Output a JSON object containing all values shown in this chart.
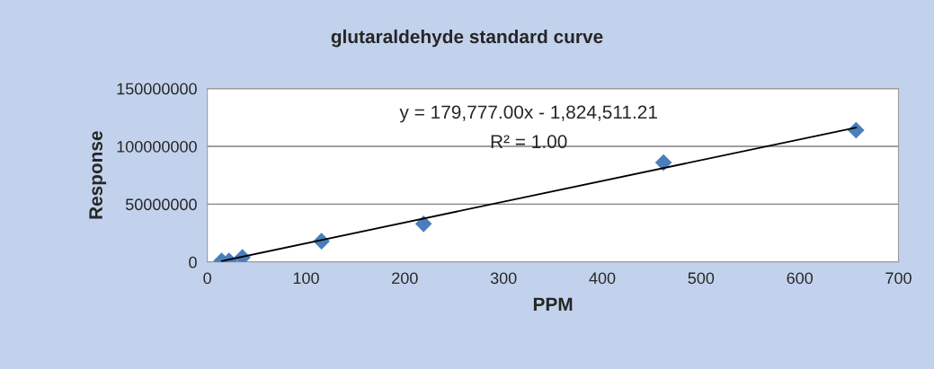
{
  "chart_data": {
    "type": "scatter",
    "title": "glutaraldehyde standard curve",
    "xlabel": "PPM",
    "ylabel": "Response",
    "x": [
      14.5,
      22,
      35.5,
      115.6,
      219,
      462,
      657
    ],
    "series": [
      {
        "type": "scatter",
        "color": "#4a7ebb",
        "marker": "diamond",
        "values": [
          1000000,
          1000000,
          4000000,
          18000000,
          33000000,
          86000000,
          114000000
        ]
      },
      {
        "type": "line",
        "color": "#000000",
        "marker": "none",
        "line_style": "solid",
        "x": [
          14.5,
          657
        ],
        "values": [
          800000,
          116300000
        ]
      }
    ],
    "annotations": [
      "y = 179,777.00x - 1,824,511.21",
      "R² = 1.00"
    ],
    "xlim": [
      0,
      700
    ],
    "xticks": [
      0,
      100,
      200,
      300,
      400,
      500,
      600,
      700
    ],
    "ylim": [
      0,
      150000000
    ],
    "yticks": [
      0,
      50000000,
      100000000,
      150000000
    ],
    "grid": "y",
    "legend": false
  }
}
